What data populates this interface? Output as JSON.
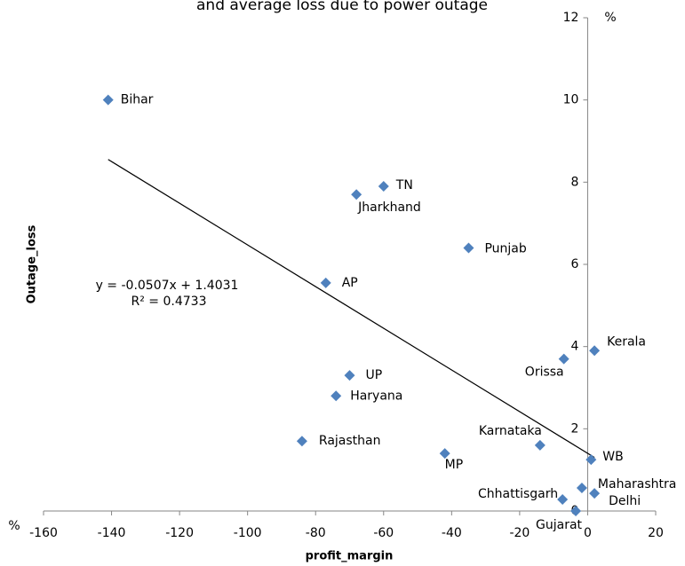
{
  "chart_data": {
    "type": "scatter",
    "title": "and average loss due to power outage",
    "x_label": "profit_margin",
    "y_label": "Outage_loss",
    "x_unit": "%",
    "y_unit": "%",
    "color": "#4f81bd",
    "series": [
      {
        "name": "Outage_loss",
        "labels": [
          "Bihar",
          "TN",
          "Jharkhand",
          "Punjab",
          "AP",
          "UP",
          "Haryana",
          "Rajasthan",
          "MP",
          "Karnataka",
          "Orissa",
          "Kerala",
          "WB",
          "Maharashtra",
          "Delhi",
          "Chhattisgarh",
          "Gujarat"
        ],
        "x": [
          -141,
          -60,
          -68,
          -35,
          -77,
          -70,
          -74,
          -84,
          -42,
          -14,
          -7,
          2,
          1,
          -1.7,
          2,
          -7.4,
          -3.5
        ],
        "values": [
          10.0,
          7.9,
          7.7,
          6.4,
          5.55,
          3.3,
          2.8,
          1.7,
          1.4,
          1.6,
          3.7,
          3.9,
          1.25,
          0.56,
          0.43,
          0.28,
          0.0
        ]
      }
    ],
    "trendline": {
      "slope": -0.0507,
      "intercept": 1.4031,
      "equation": "y = -0.0507x + 1.4031",
      "r_squared": "R² = 0.4733"
    },
    "xlim": [
      -160,
      20
    ],
    "xticks": [
      -160,
      -140,
      -120,
      -100,
      -80,
      -60,
      -40,
      -20,
      0,
      20
    ],
    "ylim": [
      0,
      12
    ],
    "yticks": [
      0,
      2,
      4,
      6,
      8,
      10,
      12
    ]
  }
}
